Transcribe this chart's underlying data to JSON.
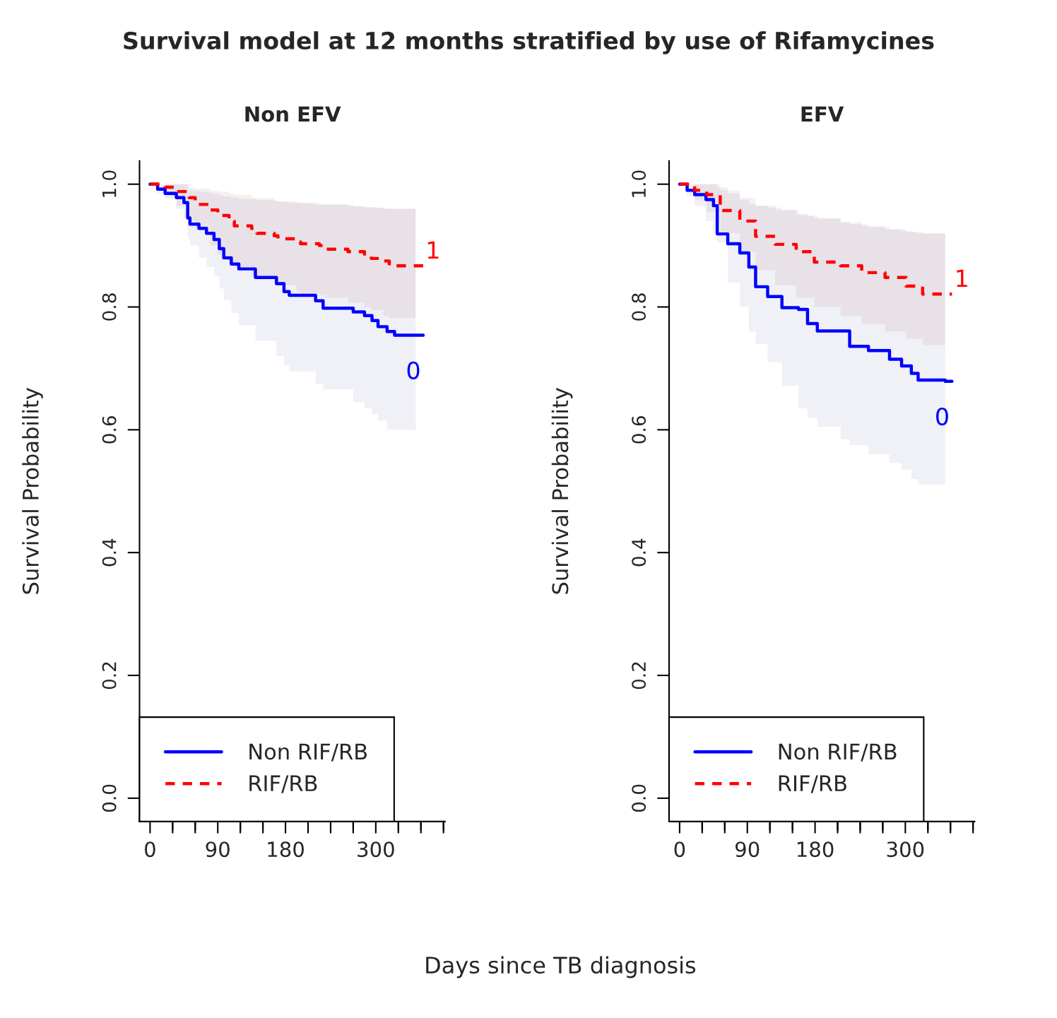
{
  "chart_data": [
    {
      "type": "step",
      "title": "Non EFV",
      "ylabel": "Survival Probability",
      "xlabel": "Days since TB diagnosis",
      "annotations": [
        "Survival model at 12 months stratified by use of Rifamycines",
        "0",
        "1"
      ],
      "series": [
        {
          "name": "Non RIF/RB",
          "color": "#0000ff",
          "line_style": "solid",
          "x": [
            0,
            10,
            20,
            35,
            45,
            50,
            53,
            65,
            75,
            85,
            92,
            98,
            108,
            118,
            140,
            168,
            178,
            185,
            220,
            230,
            270,
            285,
            295,
            303,
            315,
            325,
            353,
            363
          ],
          "values": [
            1.0,
            0.992,
            0.985,
            0.978,
            0.97,
            0.945,
            0.935,
            0.928,
            0.92,
            0.91,
            0.895,
            0.88,
            0.87,
            0.862,
            0.848,
            0.838,
            0.825,
            0.819,
            0.81,
            0.798,
            0.792,
            0.786,
            0.778,
            0.768,
            0.76,
            0.754,
            0.754,
            0.754
          ],
          "lower": [
            1.0,
            0.985,
            0.977,
            0.96,
            0.945,
            0.911,
            0.9,
            0.88,
            0.865,
            0.85,
            0.83,
            0.811,
            0.79,
            0.77,
            0.745,
            0.72,
            0.705,
            0.695,
            0.675,
            0.666,
            0.645,
            0.635,
            0.625,
            0.615,
            0.6,
            0.6,
            0.6,
            null
          ],
          "upper": [
            1.0,
            1.0,
            1.0,
            1.0,
            1.0,
            0.99,
            0.99,
            0.988,
            0.986,
            0.984,
            0.982,
            0.98,
            0.978,
            0.976,
            0.974,
            0.972,
            0.971,
            0.97,
            0.967,
            0.967,
            0.964,
            0.963,
            0.962,
            0.961,
            0.96,
            0.96,
            0.96,
            null
          ]
        },
        {
          "name": "RIF/RB",
          "color": "#ff0000",
          "line_style": "dashed",
          "x": [
            0,
            20,
            35,
            52,
            60,
            80,
            90,
            105,
            112,
            135,
            142,
            165,
            170,
            195,
            200,
            225,
            232,
            263,
            285,
            294,
            310,
            318,
            353,
            363
          ],
          "values": [
            1.0,
            0.995,
            0.988,
            0.978,
            0.967,
            0.958,
            0.949,
            0.94,
            0.932,
            0.928,
            0.92,
            0.916,
            0.911,
            0.906,
            0.903,
            0.9,
            0.894,
            0.89,
            0.886,
            0.879,
            0.875,
            0.867,
            0.867,
            0.867
          ],
          "lower": [
            1.0,
            0.98,
            0.965,
            0.94,
            0.925,
            0.9,
            0.885,
            0.87,
            0.865,
            0.85,
            0.845,
            0.84,
            0.835,
            0.825,
            0.822,
            0.819,
            0.815,
            0.807,
            0.8,
            0.795,
            0.785,
            0.782,
            0.782,
            null
          ],
          "upper": [
            1.0,
            1.0,
            1.0,
            0.995,
            0.993,
            0.99,
            0.988,
            0.985,
            0.983,
            0.978,
            0.977,
            0.973,
            0.972,
            0.97,
            0.969,
            0.968,
            0.967,
            0.964,
            0.962,
            0.962,
            0.96,
            0.96,
            0.96,
            null
          ]
        }
      ],
      "xlim": [
        -14,
        392
      ],
      "ylim": [
        -0.038,
        1.038
      ],
      "xticks": [
        0,
        {
          "value": 30,
          "label": null
        },
        {
          "value": 60,
          "label": null
        },
        90,
        {
          "value": 120,
          "label": null
        },
        {
          "value": 150,
          "label": null
        },
        180,
        {
          "value": 210,
          "label": null
        },
        {
          "value": 240,
          "label": null
        },
        {
          "value": 270,
          "label": null
        },
        300,
        {
          "value": 330,
          "label": null
        },
        {
          "value": 360,
          "label": null
        },
        {
          "value": 390,
          "label": null
        }
      ],
      "yticks": [
        {
          "value": 0,
          "label": "0.0"
        },
        {
          "value": 0.2,
          "label": "0.2"
        },
        {
          "value": 0.4,
          "label": "0.4"
        },
        {
          "value": 0.6,
          "label": "0.6"
        },
        {
          "value": 0.8,
          "label": "0.8"
        },
        {
          "value": 1,
          "label": "1.0"
        }
      ],
      "legend": "bottom left",
      "grid": false
    },
    {
      "type": "step",
      "title": "EFV",
      "ylabel": "Survival Probability",
      "annotations": [
        "0",
        "1"
      ],
      "series": [
        {
          "name": "Non RIF/RB",
          "color": "#0000ff",
          "line_style": "solid",
          "x": [
            0,
            10,
            20,
            35,
            45,
            50,
            64,
            80,
            92,
            101,
            117,
            136,
            158,
            170,
            183,
            214,
            226,
            251,
            279,
            295,
            308,
            317,
            353,
            362
          ],
          "values": [
            1.0,
            0.99,
            0.983,
            0.975,
            0.965,
            0.919,
            0.903,
            0.888,
            0.865,
            0.833,
            0.817,
            0.799,
            0.796,
            0.773,
            0.761,
            0.761,
            0.736,
            0.729,
            0.715,
            0.704,
            0.692,
            0.681,
            0.679,
            0.679
          ],
          "lower": [
            1.0,
            0.98,
            0.965,
            0.94,
            0.92,
            0.905,
            0.84,
            0.8,
            0.76,
            0.74,
            0.71,
            0.672,
            0.635,
            0.619,
            0.605,
            0.585,
            0.575,
            0.56,
            0.546,
            0.535,
            0.52,
            0.511,
            0.511,
            null
          ],
          "upper": [
            1.0,
            1.0,
            1.0,
            1.0,
            1.0,
            0.995,
            0.985,
            0.975,
            0.968,
            0.965,
            0.962,
            0.958,
            0.952,
            0.948,
            0.944,
            0.938,
            0.935,
            0.93,
            0.926,
            0.924,
            0.922,
            0.92,
            0.92,
            null
          ]
        },
        {
          "name": "RIF/RB",
          "color": "#ff0000",
          "line_style": "dashed",
          "x": [
            0,
            20,
            36,
            54,
            80,
            101,
            127,
            155,
            179,
            214,
            242,
            273,
            301,
            323,
            353,
            362
          ],
          "values": [
            1.0,
            0.99,
            0.983,
            0.957,
            0.94,
            0.915,
            0.902,
            0.89,
            0.873,
            0.867,
            0.856,
            0.848,
            0.834,
            0.821,
            0.821,
            0.821
          ],
          "lower": [
            1.0,
            0.975,
            0.955,
            0.92,
            0.89,
            0.86,
            0.835,
            0.815,
            0.8,
            0.785,
            0.772,
            0.76,
            0.748,
            0.738,
            0.738,
            null
          ],
          "upper": [
            1.0,
            1.0,
            1.0,
            0.99,
            0.978,
            0.965,
            0.958,
            0.95,
            0.945,
            0.938,
            0.932,
            0.927,
            0.922,
            0.92,
            0.92,
            null
          ]
        }
      ],
      "xlim": [
        -14,
        392
      ],
      "ylim": [
        -0.038,
        1.038
      ],
      "xticks": [
        0,
        {
          "value": 30,
          "label": null
        },
        {
          "value": 60,
          "label": null
        },
        90,
        {
          "value": 120,
          "label": null
        },
        {
          "value": 150,
          "label": null
        },
        180,
        {
          "value": 210,
          "label": null
        },
        {
          "value": 240,
          "label": null
        },
        {
          "value": 270,
          "label": null
        },
        300,
        {
          "value": 330,
          "label": null
        },
        {
          "value": 360,
          "label": null
        },
        {
          "value": 390,
          "label": null
        }
      ],
      "yticks": [
        {
          "value": 0,
          "label": "0.0"
        },
        {
          "value": 0.2,
          "label": "0.2"
        },
        {
          "value": 0.4,
          "label": "0.4"
        },
        {
          "value": 0.6,
          "label": "0.6"
        },
        {
          "value": 0.8,
          "label": "0.8"
        },
        {
          "value": 1,
          "label": "1.0"
        }
      ],
      "legend": "bottom left",
      "grid": false
    }
  ]
}
